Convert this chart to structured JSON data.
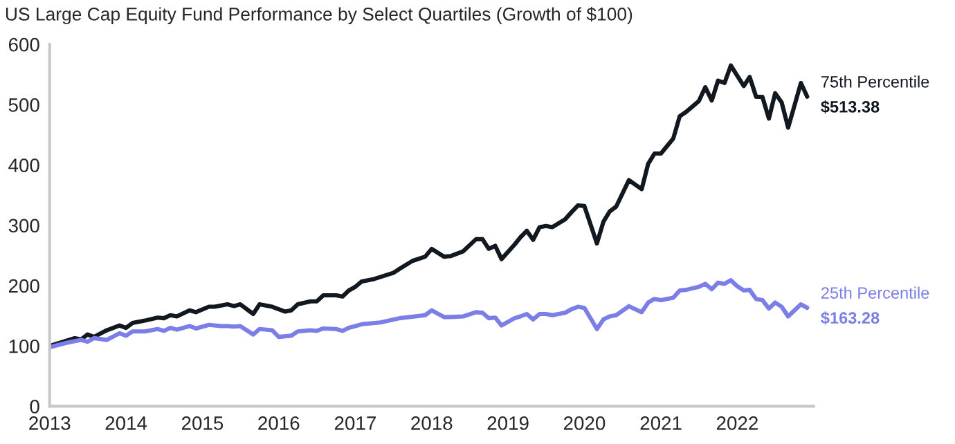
{
  "chart_data": {
    "type": "line",
    "title": "US Large Cap Equity Fund Performance by Select Quartiles (Growth of $100)",
    "xlim": [
      "2013",
      "2023"
    ],
    "xticks": [
      "2013",
      "2014",
      "2015",
      "2016",
      "2017",
      "2018",
      "2019",
      "2020",
      "2021",
      "2022"
    ],
    "ylim": [
      0,
      600
    ],
    "yticks": [
      0,
      100,
      200,
      300,
      400,
      500,
      600
    ],
    "grid": false,
    "legend": false,
    "marker": "none",
    "line_style": "solid",
    "series": [
      {
        "name": "75th Percentile",
        "color": "#111820",
        "x": [
          "2013-01",
          "2013-05",
          "2013-06",
          "2013-07",
          "2013-08",
          "2013-10",
          "2013-12",
          "2014-01",
          "2014-02",
          "2014-04",
          "2014-06",
          "2014-07",
          "2014-08",
          "2014-09",
          "2014-11",
          "2014-12",
          "2015-02",
          "2015-03",
          "2015-05",
          "2015-06",
          "2015-07",
          "2015-09",
          "2015-10",
          "2015-12",
          "2016-02",
          "2016-03",
          "2016-04",
          "2016-06",
          "2016-07",
          "2016-08",
          "2016-10",
          "2016-11",
          "2016-12",
          "2017-01",
          "2017-02",
          "2017-04",
          "2017-07",
          "2017-08",
          "2017-10",
          "2017-12",
          "2018-01",
          "2018-03",
          "2018-04",
          "2018-06",
          "2018-08",
          "2018-09",
          "2018-10",
          "2018-11",
          "2018-12",
          "2019-02",
          "2019-03",
          "2019-04",
          "2019-05",
          "2019-06",
          "2019-07",
          "2019-08",
          "2019-10",
          "2019-11",
          "2019-12",
          "2020-01",
          "2020-03",
          "2020-04",
          "2020-05",
          "2020-06",
          "2020-08",
          "2020-10",
          "2020-11",
          "2020-12",
          "2021-01",
          "2021-03",
          "2021-04",
          "2021-05",
          "2021-07",
          "2021-08",
          "2021-09",
          "2021-10",
          "2021-11",
          "2021-12",
          "2022-01",
          "2022-02",
          "2022-03",
          "2022-04",
          "2022-05",
          "2022-06",
          "2022-07",
          "2022-08",
          "2022-09",
          "2022-11",
          "2022-12"
        ],
        "values": [
          100,
          113,
          111,
          119,
          115,
          126,
          134,
          130,
          138,
          142,
          147,
          146,
          151,
          149,
          159,
          156,
          165,
          165,
          169,
          166,
          169,
          153,
          169,
          165,
          157,
          159,
          169,
          174,
          174,
          184,
          184,
          182,
          192,
          198,
          207,
          211,
          221,
          228,
          241,
          248,
          261,
          248,
          249,
          257,
          277,
          277,
          261,
          266,
          244,
          268,
          280,
          291,
          276,
          297,
          299,
          297,
          310,
          322,
          333,
          332,
          270,
          306,
          323,
          331,
          375,
          360,
          402,
          419,
          419,
          444,
          481,
          488,
          506,
          529,
          507,
          540,
          536,
          565,
          548,
          531,
          546,
          513,
          513,
          477,
          519,
          504,
          462,
          536,
          513.38
        ]
      },
      {
        "name": "25th Percentile",
        "color": "#7b7ee6",
        "x": [
          "2013-01",
          "2013-04",
          "2013-06",
          "2013-07",
          "2013-08",
          "2013-10",
          "2013-12",
          "2014-01",
          "2014-02",
          "2014-04",
          "2014-06",
          "2014-07",
          "2014-08",
          "2014-09",
          "2014-11",
          "2014-12",
          "2015-02",
          "2015-04",
          "2015-05",
          "2015-06",
          "2015-07",
          "2015-09",
          "2015-10",
          "2015-12",
          "2016-01",
          "2016-03",
          "2016-04",
          "2016-06",
          "2016-07",
          "2016-08",
          "2016-10",
          "2016-11",
          "2016-12",
          "2017-02",
          "2017-05",
          "2017-08",
          "2017-12",
          "2018-01",
          "2018-03",
          "2018-04",
          "2018-06",
          "2018-08",
          "2018-09",
          "2018-10",
          "2018-11",
          "2018-12",
          "2019-02",
          "2019-03",
          "2019-04",
          "2019-05",
          "2019-06",
          "2019-07",
          "2019-08",
          "2019-10",
          "2019-11",
          "2019-12",
          "2020-01",
          "2020-03",
          "2020-04",
          "2020-05",
          "2020-06",
          "2020-08",
          "2020-10",
          "2020-11",
          "2020-12",
          "2021-01",
          "2021-03",
          "2021-04",
          "2021-05",
          "2021-07",
          "2021-08",
          "2021-09",
          "2021-10",
          "2021-11",
          "2021-12",
          "2022-01",
          "2022-02",
          "2022-03",
          "2022-04",
          "2022-05",
          "2022-06",
          "2022-07",
          "2022-08",
          "2022-09",
          "2022-11",
          "2022-12"
        ],
        "values": [
          98,
          106,
          110,
          107,
          113,
          110,
          121,
          117,
          124,
          124,
          128,
          125,
          130,
          127,
          133,
          129,
          135,
          133,
          133,
          132,
          133,
          119,
          128,
          126,
          115,
          117,
          124,
          126,
          125,
          129,
          128,
          125,
          130,
          136,
          139,
          146,
          151,
          159,
          148,
          148,
          149,
          156,
          155,
          146,
          147,
          134,
          146,
          149,
          153,
          144,
          153,
          153,
          151,
          155,
          161,
          165,
          163,
          128,
          144,
          149,
          151,
          166,
          156,
          172,
          178,
          176,
          180,
          192,
          193,
          198,
          203,
          194,
          205,
          203,
          209,
          199,
          192,
          193,
          178,
          176,
          162,
          172,
          165,
          149,
          169,
          163.28
        ]
      }
    ],
    "annotations": [
      {
        "text": "$513.38",
        "x": "2022-12",
        "y": 513.38
      },
      {
        "text": "$163.28",
        "x": "2022-12",
        "y": 163.28
      }
    ]
  }
}
